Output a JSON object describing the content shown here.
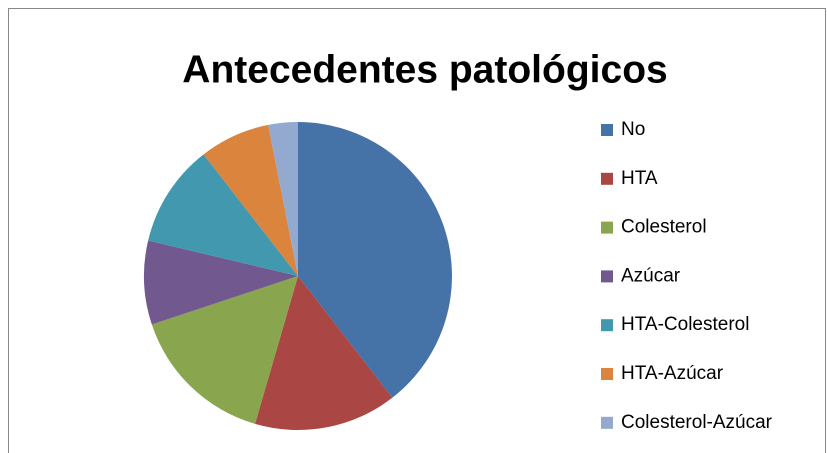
{
  "chart_data": {
    "type": "pie",
    "title": "Antecedentes patológicos",
    "categories": [
      "No",
      "HTA",
      "Colesterol",
      "Azúcar",
      "HTA-Colesterol",
      "HTA-Azúcar",
      "Colesterol-Azúcar"
    ],
    "values": [
      39.5,
      15,
      15.4,
      8.8,
      10.8,
      7.4,
      3.1
    ],
    "colors": [
      "#4572a7",
      "#aa4643",
      "#89a54e",
      "#71588f",
      "#4198af",
      "#db843d",
      "#93a9cf"
    ],
    "legend": "right"
  }
}
